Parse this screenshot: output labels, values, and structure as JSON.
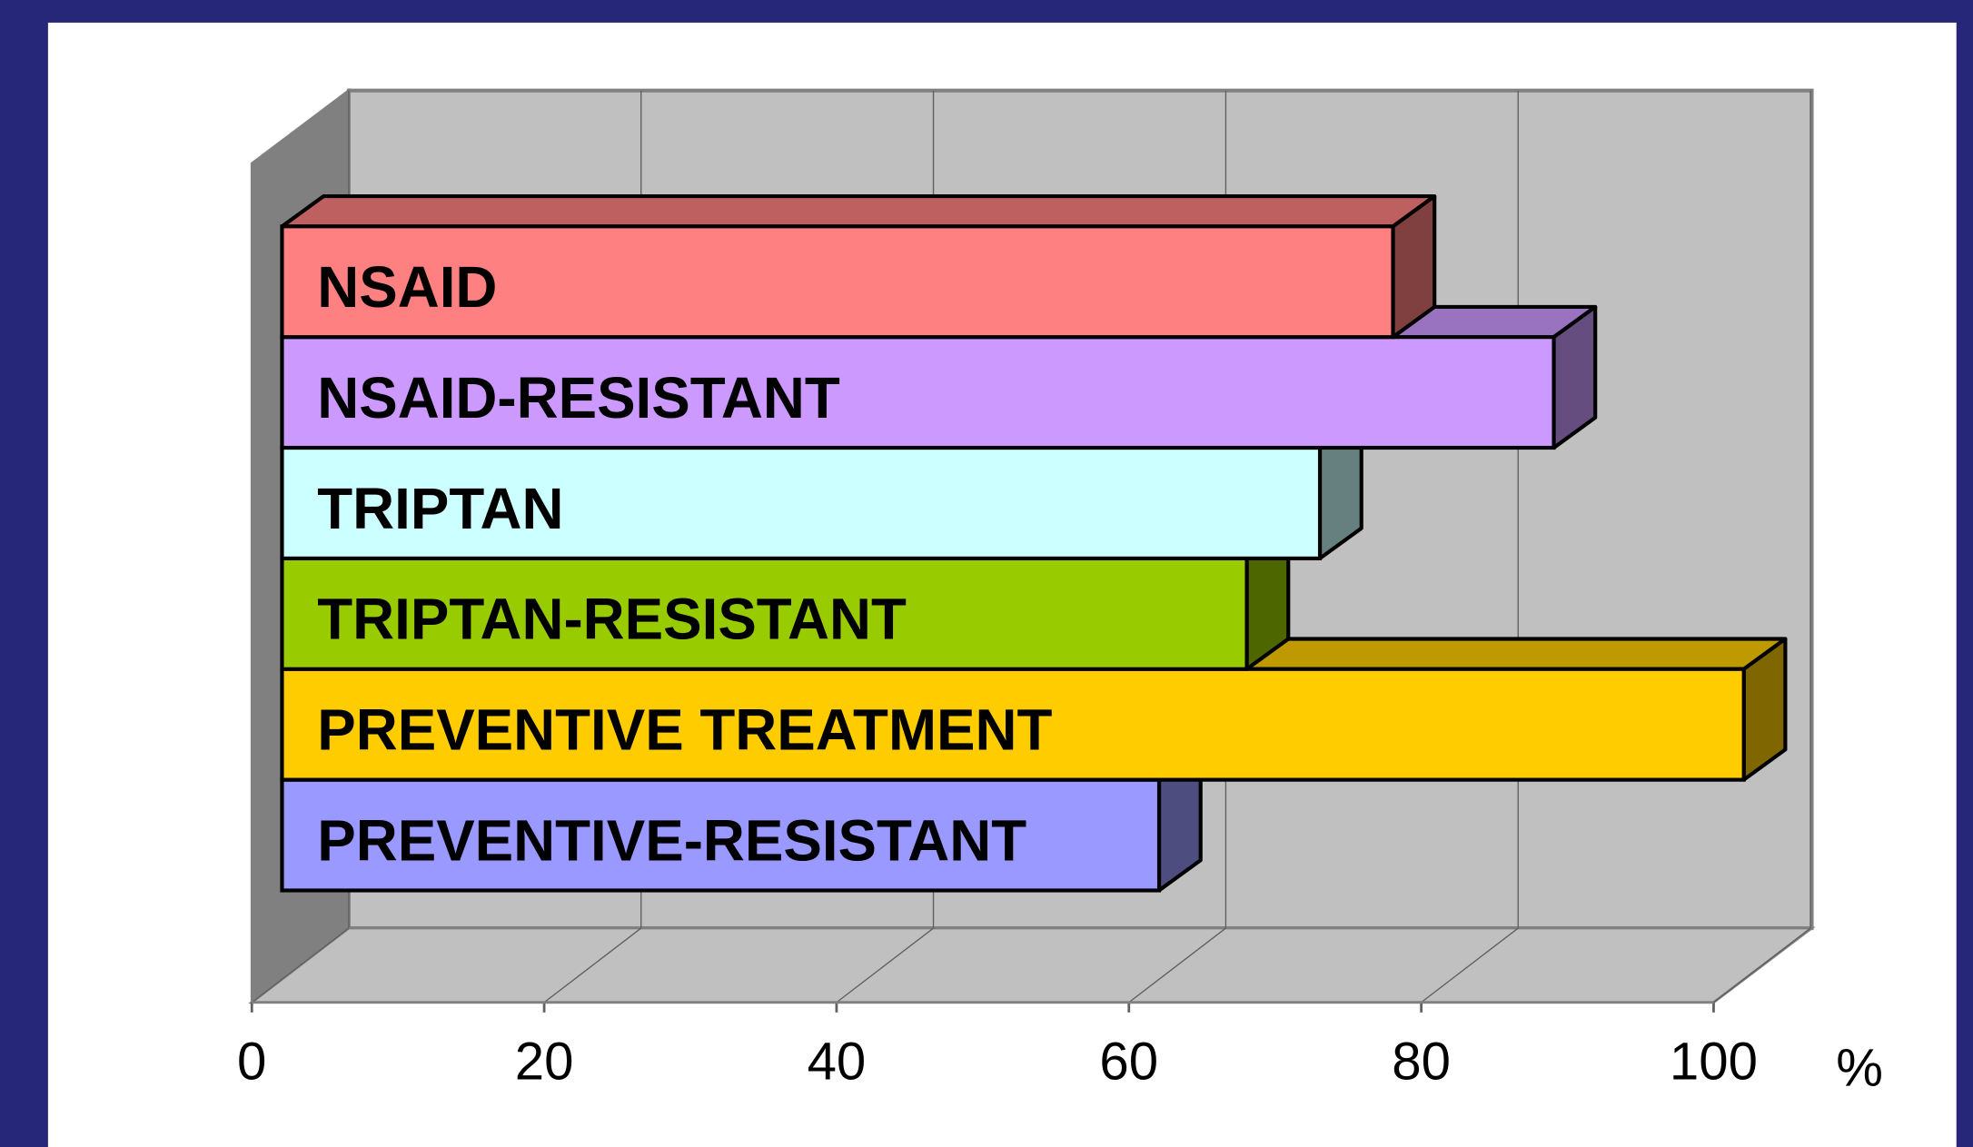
{
  "chart_data": {
    "type": "bar3d",
    "orientation": "horizontal",
    "categories": [
      "NSAID",
      "NSAID-RESISTANT",
      "TRIPTAN",
      "TRIPTAN-RESISTANT",
      "PREVENTIVE TREATMENT",
      "PREVENTIVE-RESISTANT"
    ],
    "values": [
      76,
      87,
      71,
      66,
      100,
      60
    ],
    "colors": [
      "#ff8080",
      "#cc99ff",
      "#ccffff",
      "#99cc00",
      "#ffcc00",
      "#9999ff"
    ],
    "x_label": "%",
    "xlim": [
      0,
      100
    ],
    "xticks": [
      0,
      20,
      40,
      60,
      80,
      100
    ],
    "grid": true
  }
}
